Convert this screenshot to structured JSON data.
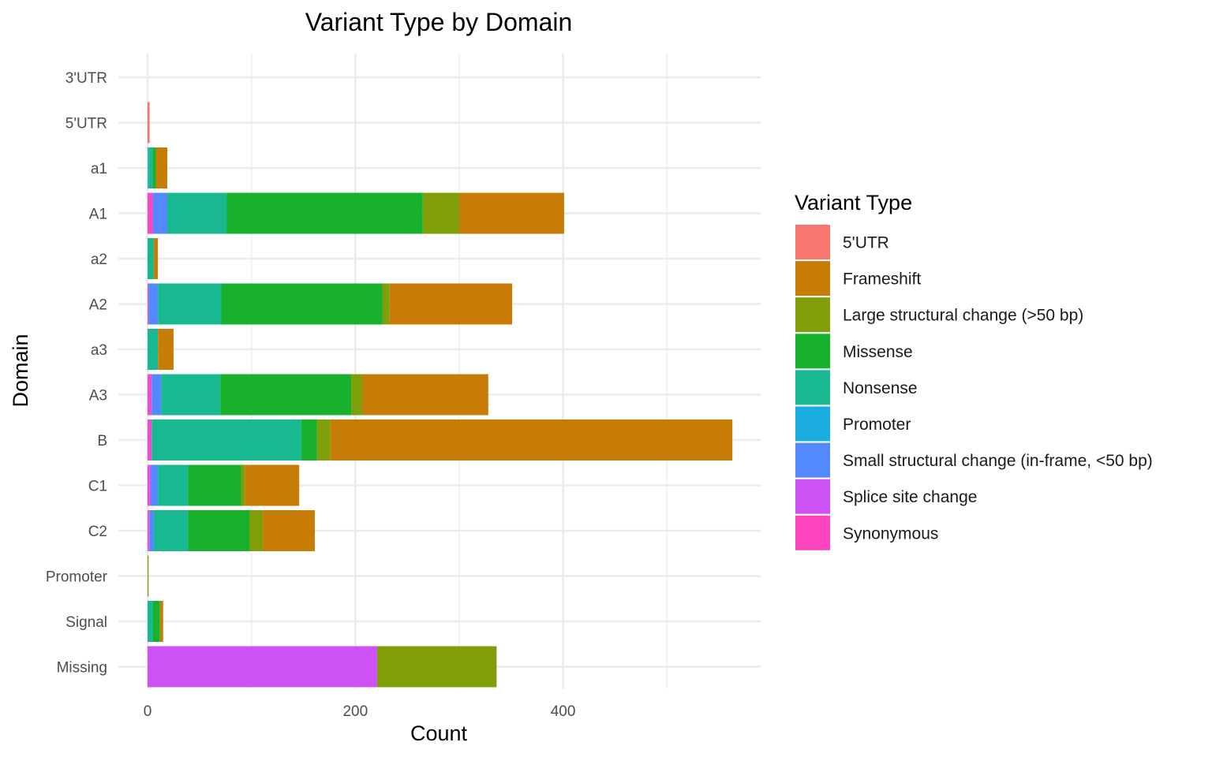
{
  "chart_data": {
    "type": "bar",
    "orientation": "horizontal",
    "stacked": true,
    "title": "Variant Type by Domain",
    "xlabel": "Count",
    "ylabel": "Domain",
    "xlim": [
      0,
      590
    ],
    "xticks": [
      0,
      200,
      400
    ],
    "xtick_labels": [
      "0",
      "200",
      "400"
    ],
    "x_minor_ticks": [
      100,
      300,
      500
    ],
    "grid": true,
    "legend_title": "Variant Type",
    "legend_position": "right",
    "categories": [
      "3'UTR",
      "5'UTR",
      "a1",
      "A1",
      "a2",
      "A2",
      "a3",
      "A3",
      "B",
      "C1",
      "C2",
      "Promoter",
      "Signal",
      "Missing"
    ],
    "series": [
      {
        "name": "5'UTR",
        "color": "#F8766D",
        "values": [
          0,
          2,
          0,
          0,
          0,
          0,
          0,
          0,
          0,
          0,
          0,
          0,
          0,
          0
        ]
      },
      {
        "name": "Frameshift",
        "color": "#C77C05",
        "values": [
          0,
          0,
          11,
          101,
          4,
          118,
          15,
          121,
          387,
          52,
          50,
          0,
          3,
          0
        ]
      },
      {
        "name": "Large structural change (>50 bp)",
        "color": "#7F9E09",
        "values": [
          0,
          0,
          0,
          35,
          0,
          7,
          0,
          11,
          13,
          4,
          13,
          1,
          0,
          115
        ]
      },
      {
        "name": "Missense",
        "color": "#18B12D",
        "values": [
          0,
          0,
          3,
          189,
          0,
          155,
          0,
          126,
          15,
          51,
          59,
          0,
          7,
          0
        ]
      },
      {
        "name": "Nonsense",
        "color": "#18B890",
        "values": [
          0,
          0,
          4,
          57,
          6,
          61,
          10,
          57,
          144,
          29,
          33,
          0,
          5,
          0
        ]
      },
      {
        "name": "Promoter",
        "color": "#1AADE0",
        "values": [
          0,
          0,
          1,
          0,
          0,
          0,
          0,
          0,
          0,
          0,
          0,
          0,
          0,
          0
        ]
      },
      {
        "name": "Small structural change (in-frame, <50 bp)",
        "color": "#5289FF",
        "values": [
          0,
          0,
          0,
          14,
          0,
          9,
          0,
          9,
          0,
          7,
          4,
          0,
          0,
          0
        ]
      },
      {
        "name": "Splice site change",
        "color": "#CC52F5",
        "values": [
          0,
          0,
          0,
          0,
          0,
          0,
          0,
          1,
          1,
          1,
          1,
          0,
          0,
          221
        ]
      },
      {
        "name": "Synonymous",
        "color": "#FC45BE",
        "values": [
          0,
          0,
          0,
          5,
          0,
          1,
          0,
          3,
          3,
          2,
          1,
          0,
          0,
          0
        ]
      }
    ]
  }
}
